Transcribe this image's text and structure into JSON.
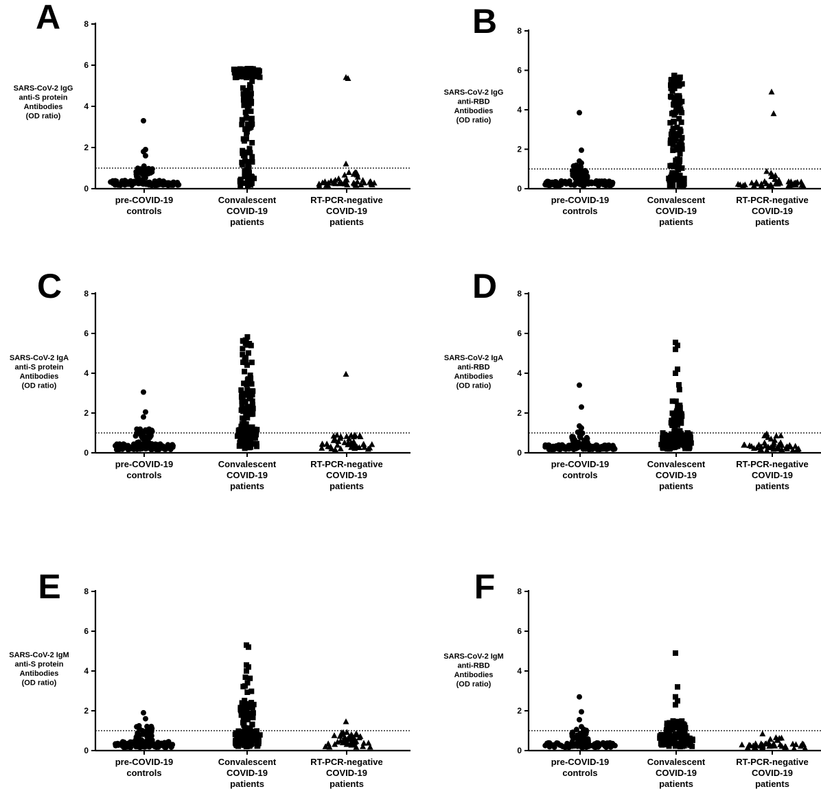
{
  "figure": {
    "categories": [
      [
        "pre-COVID-19",
        "controls"
      ],
      [
        "Convalescent",
        "COVID-19",
        "patients"
      ],
      [
        "RT-PCR-negative",
        "COVID-19",
        "patients"
      ]
    ],
    "yticks": [
      0,
      2,
      4,
      6,
      8
    ],
    "ylim": [
      0,
      8
    ],
    "cutoff": 1.0,
    "marker_color": "#000000"
  },
  "chart_data": [
    {
      "type": "scatter",
      "letter": "A",
      "ylabel": [
        "SARS-CoV-2 IgG",
        "anti-S protein",
        "Antibodies",
        "(OD ratio)"
      ],
      "categories": [
        "pre-COVID-19 controls",
        "Convalescent COVID-19 patients",
        "RT-PCR-negative COVID-19 patients"
      ],
      "ylim": [
        0,
        8
      ],
      "cutoff": 1.0,
      "series": [
        {
          "marker": "circle",
          "n": 130,
          "max": 3.3,
          "outliers": [
            3.3,
            1.9,
            1.8,
            1.6
          ],
          "dist": "low",
          "bands": [
            [
              0.15,
              0.4,
              0.75
            ],
            [
              0.4,
              1.1,
              0.25
            ]
          ]
        },
        {
          "marker": "square",
          "n": 140,
          "max": 5.8,
          "outliers": [],
          "dist": "high",
          "bands": [
            [
              5.4,
              5.85,
              0.38
            ],
            [
              0.1,
              0.5,
              0.12
            ],
            [
              0.5,
              5.4,
              0.5
            ]
          ]
        },
        {
          "marker": "triangle",
          "n": 45,
          "max": 5.4,
          "outliers": [
            5.4,
            5.35,
            1.2
          ],
          "dist": "low",
          "bands": [
            [
              0.1,
              0.4,
              0.7
            ],
            [
              0.4,
              0.8,
              0.3
            ]
          ]
        }
      ]
    },
    {
      "type": "scatter",
      "letter": "B",
      "ylabel": [
        "SARS-CoV-2 IgG",
        "anti-RBD",
        "Antibodies",
        "(OD ratio)"
      ],
      "categories": [
        "pre-COVID-19 controls",
        "Convalescent COVID-19 patients",
        "RT-PCR-negative COVID-19 patients"
      ],
      "ylim": [
        0,
        8
      ],
      "cutoff": 1.0,
      "series": [
        {
          "marker": "circle",
          "n": 130,
          "max": 3.85,
          "outliers": [
            3.85,
            1.95,
            1.4,
            1.3
          ],
          "dist": "low",
          "bands": [
            [
              0.15,
              0.4,
              0.75
            ],
            [
              0.4,
              1.2,
              0.25
            ]
          ]
        },
        {
          "marker": "square",
          "n": 140,
          "max": 5.8,
          "outliers": [],
          "dist": "spread",
          "bands": [
            [
              0.1,
              0.6,
              0.2
            ],
            [
              0.6,
              5.8,
              0.8
            ]
          ]
        },
        {
          "marker": "triangle",
          "n": 45,
          "max": 4.9,
          "outliers": [
            4.9,
            3.8
          ],
          "dist": "low",
          "bands": [
            [
              0.1,
              0.35,
              0.75
            ],
            [
              0.35,
              0.9,
              0.25
            ]
          ]
        }
      ]
    },
    {
      "type": "scatter",
      "letter": "C",
      "ylabel": [
        "SARS-CoV-2 IgA",
        "anti-S protein",
        "Antibodies",
        "(OD ratio)"
      ],
      "categories": [
        "pre-COVID-19 controls",
        "Convalescent COVID-19 patients",
        "RT-PCR-negative COVID-19 patients"
      ],
      "ylim": [
        0,
        8
      ],
      "cutoff": 1.0,
      "series": [
        {
          "marker": "circle",
          "n": 130,
          "max": 3.05,
          "outliers": [
            3.05,
            2.05,
            1.8
          ],
          "dist": "low",
          "bands": [
            [
              0.15,
              0.45,
              0.7
            ],
            [
              0.45,
              1.2,
              0.3
            ]
          ]
        },
        {
          "marker": "square",
          "n": 140,
          "max": 5.9,
          "outliers": [],
          "dist": "mid",
          "bands": [
            [
              0.2,
              1.2,
              0.5
            ],
            [
              1.2,
              3.2,
              0.32
            ],
            [
              3.2,
              5.9,
              0.18
            ]
          ]
        },
        {
          "marker": "triangle",
          "n": 45,
          "max": 3.95,
          "outliers": [
            3.95
          ],
          "dist": "low",
          "bands": [
            [
              0.15,
              0.45,
              0.6
            ],
            [
              0.45,
              0.9,
              0.4
            ]
          ]
        }
      ]
    },
    {
      "type": "scatter",
      "letter": "D",
      "ylabel": [
        "SARS-CoV-2 IgA",
        "anti-RBD",
        "Antibodies",
        "(OD ratio)"
      ],
      "categories": [
        "pre-COVID-19 controls",
        "Convalescent COVID-19 patients",
        "RT-PCR-negative COVID-19 patients"
      ],
      "ylim": [
        0,
        8
      ],
      "cutoff": 1.0,
      "series": [
        {
          "marker": "circle",
          "n": 130,
          "max": 3.4,
          "outliers": [
            3.4,
            2.3,
            1.35,
            1.25
          ],
          "dist": "low",
          "bands": [
            [
              0.15,
              0.4,
              0.75
            ],
            [
              0.4,
              1.1,
              0.25
            ]
          ]
        },
        {
          "marker": "square",
          "n": 140,
          "max": 5.55,
          "outliers": [
            5.55,
            5.4,
            5.2,
            4.2,
            4.0
          ],
          "dist": "mid",
          "bands": [
            [
              0.2,
              1.0,
              0.75
            ],
            [
              1.0,
              2.6,
              0.22
            ],
            [
              2.6,
              3.6,
              0.03
            ]
          ]
        },
        {
          "marker": "triangle",
          "n": 45,
          "max": 0.95,
          "outliers": [],
          "dist": "low",
          "bands": [
            [
              0.1,
              0.4,
              0.75
            ],
            [
              0.4,
              0.95,
              0.25
            ]
          ]
        }
      ]
    },
    {
      "type": "scatter",
      "letter": "E",
      "ylabel": [
        "SARS-CoV-2 IgM",
        "anti-S protein",
        "Antibodies",
        "(OD ratio)"
      ],
      "categories": [
        "pre-COVID-19 controls",
        "Convalescent COVID-19 patients",
        "RT-PCR-negative COVID-19 patients"
      ],
      "ylim": [
        0,
        8
      ],
      "cutoff": 1.0,
      "series": [
        {
          "marker": "circle",
          "n": 130,
          "max": 1.9,
          "outliers": [
            1.9,
            1.6
          ],
          "dist": "low",
          "bands": [
            [
              0.15,
              0.45,
              0.7
            ],
            [
              0.45,
              1.25,
              0.3
            ]
          ]
        },
        {
          "marker": "square",
          "n": 140,
          "max": 5.3,
          "outliers": [
            5.3,
            5.2,
            4.3,
            4.2,
            4.0
          ],
          "dist": "mid",
          "bands": [
            [
              0.2,
              1.0,
              0.6
            ],
            [
              1.0,
              2.6,
              0.34
            ],
            [
              2.6,
              3.7,
              0.06
            ]
          ]
        },
        {
          "marker": "triangle",
          "n": 45,
          "max": 1.45,
          "outliers": [
            1.45
          ],
          "dist": "low",
          "bands": [
            [
              0.15,
              0.45,
              0.55
            ],
            [
              0.45,
              0.95,
              0.45
            ]
          ]
        }
      ]
    },
    {
      "type": "scatter",
      "letter": "F",
      "ylabel": [
        "SARS-CoV-2 IgM",
        "anti-RBD",
        "Antibodies",
        "(OD ratio)"
      ],
      "categories": [
        "pre-COVID-19 controls",
        "Convalescent COVID-19 patients",
        "RT-PCR-negative COVID-19 patients"
      ],
      "ylim": [
        0,
        8
      ],
      "cutoff": 1.0,
      "series": [
        {
          "marker": "circle",
          "n": 130,
          "max": 2.7,
          "outliers": [
            2.7,
            1.95,
            1.55,
            1.2
          ],
          "dist": "low",
          "bands": [
            [
              0.15,
              0.4,
              0.75
            ],
            [
              0.4,
              1.1,
              0.25
            ]
          ]
        },
        {
          "marker": "square",
          "n": 140,
          "max": 4.9,
          "outliers": [
            4.9,
            3.2,
            2.7,
            2.5,
            2.3
          ],
          "dist": "mid",
          "bands": [
            [
              0.2,
              0.8,
              0.65
            ],
            [
              0.8,
              1.5,
              0.35
            ]
          ]
        },
        {
          "marker": "triangle",
          "n": 45,
          "max": 0.95,
          "outliers": [],
          "dist": "low",
          "bands": [
            [
              0.1,
              0.35,
              0.7
            ],
            [
              0.35,
              0.95,
              0.3
            ]
          ]
        }
      ]
    }
  ]
}
